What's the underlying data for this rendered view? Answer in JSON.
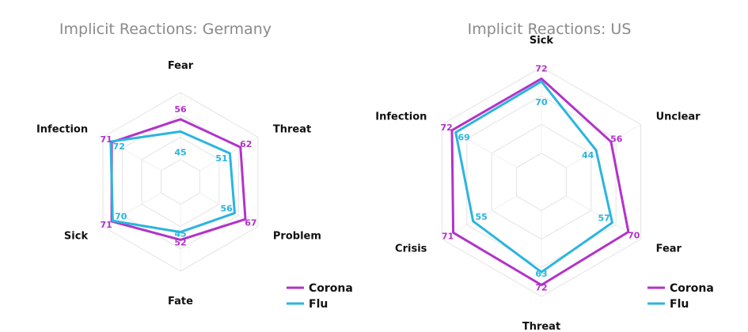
{
  "colors": {
    "corona": "#b233c9",
    "flu": "#2bb5de"
  },
  "chart_data": [
    {
      "type": "radar",
      "title": "Implicit Reactions: Germany",
      "axes": [
        "Fear",
        "Threat",
        "Problem",
        "Fate",
        "Sick",
        "Infection"
      ],
      "range": [
        0,
        80
      ],
      "grid": true,
      "legend": "bottom-right",
      "series": [
        {
          "name": "Corona",
          "values": [
            56,
            62,
            67,
            52,
            71,
            71
          ]
        },
        {
          "name": "Flu",
          "values": [
            45,
            51,
            56,
            45,
            70,
            72
          ]
        }
      ]
    },
    {
      "type": "radar",
      "title": "Implicit Reactions: US",
      "axes": [
        "Sick",
        "Unclear",
        "Fear",
        "Threat",
        "Crisis",
        "Infection"
      ],
      "range": [
        0,
        80
      ],
      "grid": true,
      "legend": "bottom-right",
      "series": [
        {
          "name": "Corona",
          "values": [
            72,
            56,
            70,
            72,
            71,
            72
          ]
        },
        {
          "name": "Flu",
          "values": [
            70,
            44,
            57,
            63,
            55,
            69
          ]
        }
      ]
    }
  ]
}
